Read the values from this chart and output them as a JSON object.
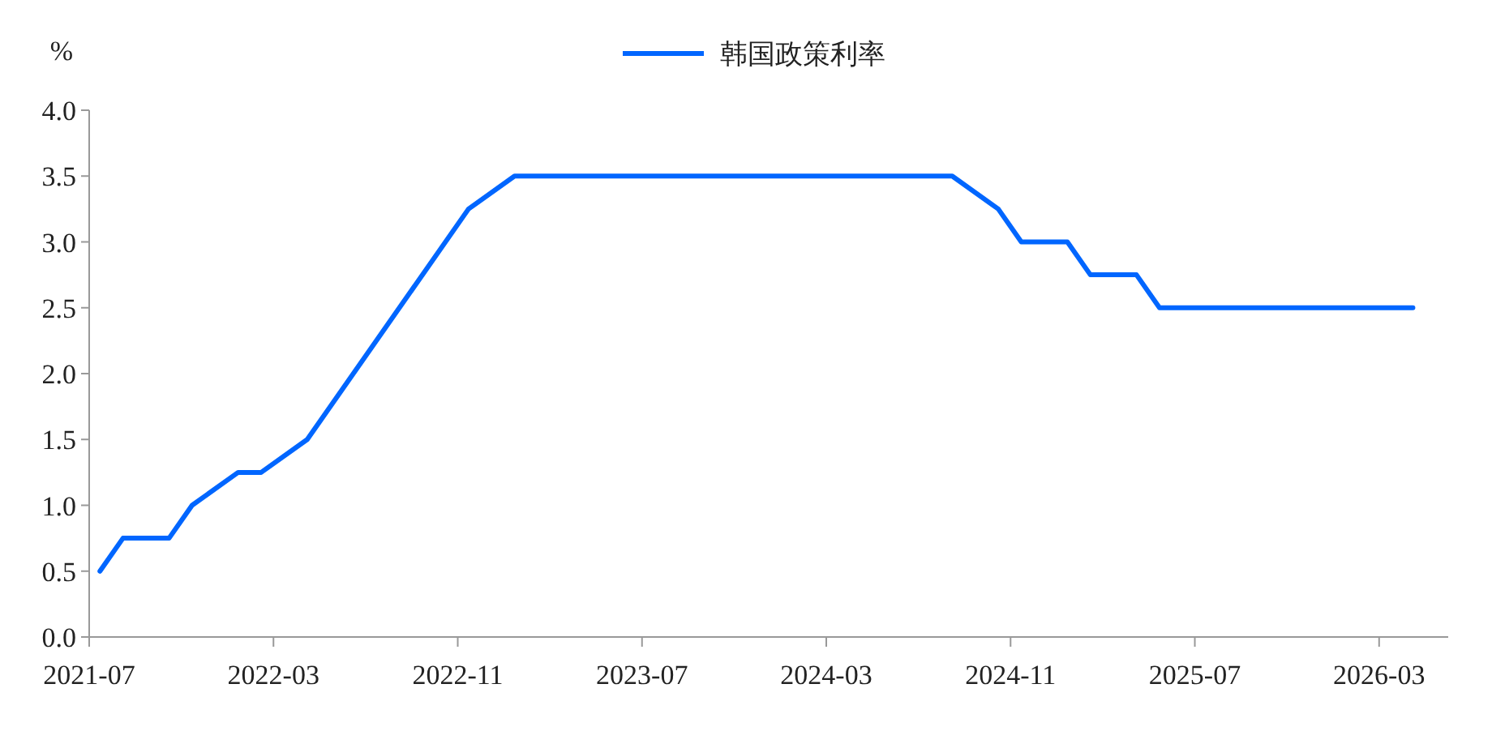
{
  "chart_data": {
    "type": "line",
    "ylabel": "%",
    "legend": "top",
    "x": [
      "2021-07-15",
      "2021-08-15",
      "2021-10-15",
      "2021-11-15",
      "2022-01-15",
      "2022-02-15",
      "2022-04-15",
      "2022-11-15",
      "2023-01-15",
      "2024-08-15",
      "2024-10-15",
      "2024-11-15",
      "2025-01-15",
      "2025-02-15",
      "2025-04-15",
      "2025-05-15",
      "2026-04-15"
    ],
    "series": [
      {
        "name": "韩国政策利率",
        "color": "#0066ff",
        "values": [
          0.5,
          0.75,
          0.75,
          1.0,
          1.25,
          1.25,
          1.5,
          3.25,
          3.5,
          3.5,
          3.25,
          3.0,
          3.0,
          2.75,
          2.75,
          2.5,
          2.5
        ]
      }
    ],
    "xlim": [
      "2021-07",
      "2026-06"
    ],
    "xticks": [
      "2021-07",
      "2022-03",
      "2022-11",
      "2023-07",
      "2024-03",
      "2024-11",
      "2025-07",
      "2026-03"
    ],
    "ylim": [
      0,
      4
    ],
    "yticks": [
      {
        "value": 0,
        "label": "0.0"
      },
      {
        "value": 0.5,
        "label": "0.5"
      },
      {
        "value": 1,
        "label": "1.0"
      },
      {
        "value": 1.5,
        "label": "1.5"
      },
      {
        "value": 2,
        "label": "2.0"
      },
      {
        "value": 2.5,
        "label": "2.5"
      },
      {
        "value": 3,
        "label": "3.0"
      },
      {
        "value": 3.5,
        "label": "3.5"
      },
      {
        "value": 4,
        "label": "4.0"
      }
    ]
  }
}
